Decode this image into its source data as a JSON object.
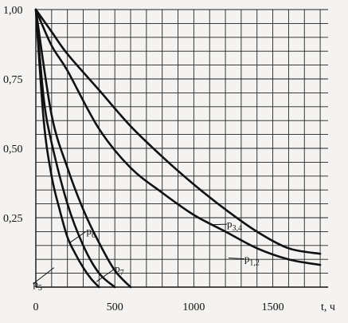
{
  "chart_data": {
    "type": "line",
    "xlabel": "t, ч",
    "ylabel": "",
    "xlim": [
      0,
      1850
    ],
    "ylim": [
      0,
      1.0
    ],
    "x_ticks": [
      "0",
      "500",
      "1000",
      "1500"
    ],
    "y_ticks": [
      "1,00",
      "0,75",
      "0,50",
      "0,25"
    ],
    "grid": true,
    "series": [
      {
        "name": "p1,2",
        "x": [
          0,
          100,
          200,
          400,
          600,
          800,
          1000,
          1200,
          1400,
          1600,
          1800
        ],
        "y": [
          1.0,
          0.87,
          0.78,
          0.57,
          0.43,
          0.34,
          0.26,
          0.2,
          0.14,
          0.1,
          0.08
        ]
      },
      {
        "name": "p3,4",
        "x": [
          0,
          100,
          200,
          400,
          600,
          800,
          1000,
          1200,
          1400,
          1600,
          1800
        ],
        "y": [
          1.0,
          0.92,
          0.84,
          0.71,
          0.58,
          0.47,
          0.37,
          0.28,
          0.2,
          0.14,
          0.12
        ]
      },
      {
        "name": "p5",
        "x": [
          0,
          50,
          100,
          150,
          200,
          250,
          300,
          350,
          400
        ],
        "y": [
          1.0,
          0.6,
          0.4,
          0.28,
          0.18,
          0.12,
          0.07,
          0.03,
          0.0
        ]
      },
      {
        "name": "p6",
        "x": [
          0,
          50,
          100,
          200,
          300,
          400,
          500
        ],
        "y": [
          1.0,
          0.68,
          0.52,
          0.3,
          0.15,
          0.05,
          0.0
        ]
      },
      {
        "name": "p7",
        "x": [
          0,
          100,
          200,
          300,
          400,
          500,
          600
        ],
        "y": [
          1.0,
          0.62,
          0.43,
          0.28,
          0.16,
          0.06,
          0.0
        ]
      }
    ]
  }
}
